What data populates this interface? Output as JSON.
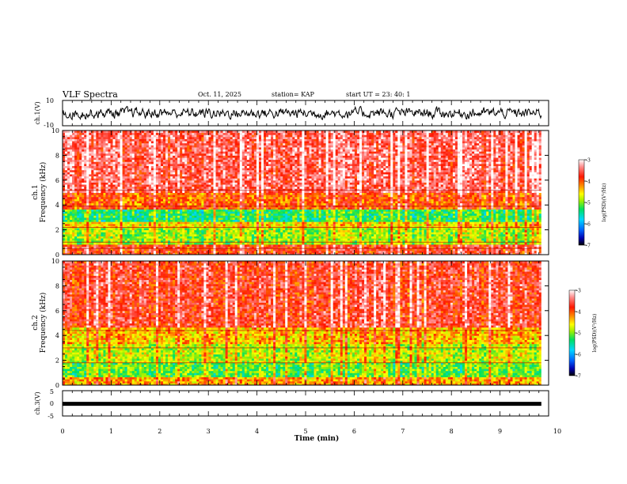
{
  "header": {
    "title": "VLF Spectra",
    "date": "Oct. 11, 2025",
    "station": "station= KAP",
    "start": "start  UT  =   23: 40: 1"
  },
  "colors": {
    "cbar": [
      "#000000",
      "#0000b0",
      "#0066ff",
      "#00d8ff",
      "#00e060",
      "#a0f000",
      "#ffff00",
      "#ff8800",
      "#ff1800",
      "#ff9090",
      "#ffffff"
    ],
    "trace": "#000000"
  },
  "chart_data": [
    {
      "type": "line",
      "ylabel": "ch.1(V)",
      "ylim": [
        -10,
        10
      ],
      "ytick_labels": [
        "10",
        "-10"
      ],
      "description_series": "broadband noise waveform, amplitude roughly -5 to +5 V",
      "xlim": [
        0,
        10
      ]
    },
    {
      "type": "heatmap",
      "panel_label": "ch.1",
      "ylabel": "Frequency (kHz)",
      "ylim": [
        0,
        10
      ],
      "yticks": [
        "0",
        "2",
        "4",
        "6",
        "8",
        "10"
      ],
      "xlim": [
        0,
        10
      ],
      "colorbar": {
        "label": "log(PSD)(V²/Hz)",
        "range": [
          -7,
          -3
        ],
        "tick_labels": [
          "-3",
          "-4",
          "-5",
          "-6",
          "-7"
        ]
      },
      "bands": [
        {
          "f_lo": 0.0,
          "f_hi": 0.9,
          "level": -3.8
        },
        {
          "f_lo": 0.9,
          "f_hi": 2.2,
          "level": -4.9
        },
        {
          "f_lo": 2.2,
          "f_hi": 2.7,
          "level": -4.5
        },
        {
          "f_lo": 2.7,
          "f_hi": 3.6,
          "level": -5.3
        },
        {
          "f_lo": 3.6,
          "f_hi": 5.0,
          "level": -4.0
        },
        {
          "f_lo": 5.0,
          "f_hi": 10.0,
          "level": -3.5
        }
      ],
      "lines_khz": [
        0.5,
        1.0,
        2.2,
        3.9,
        5.2
      ]
    },
    {
      "type": "heatmap",
      "panel_label": "ch.2",
      "ylabel": "Frequency (kHz)",
      "ylim": [
        0,
        10
      ],
      "yticks": [
        "0",
        "2",
        "4",
        "6",
        "8",
        "10"
      ],
      "xlim": [
        0,
        10
      ],
      "colorbar": {
        "label": "log(PSD)(V²/Hz)",
        "range": [
          -7,
          -3
        ],
        "tick_labels": [
          "-3",
          "-4",
          "-5",
          "-6",
          "-7"
        ]
      },
      "bands": [
        {
          "f_lo": 0.0,
          "f_hi": 0.6,
          "level": -4.3
        },
        {
          "f_lo": 0.6,
          "f_hi": 1.9,
          "level": -5.1
        },
        {
          "f_lo": 1.9,
          "f_hi": 3.3,
          "level": -4.8
        },
        {
          "f_lo": 3.3,
          "f_hi": 4.6,
          "level": -4.4
        },
        {
          "f_lo": 4.6,
          "f_hi": 10.0,
          "level": -3.7
        }
      ],
      "lines_khz": [
        1.8,
        3.0,
        4.4
      ]
    },
    {
      "type": "line",
      "ylabel": "ch.3(V)",
      "ylim": [
        -5,
        5
      ],
      "ytick_labels": [
        "5",
        "0",
        "-5"
      ],
      "description_series": "thick flat trace near -0.2 V",
      "level": -0.2,
      "xlim": [
        0,
        10
      ]
    }
  ],
  "xaxis": {
    "label": "Time (min)",
    "tick_labels": [
      "0",
      "1",
      "2",
      "3",
      "4",
      "5",
      "6",
      "7",
      "8",
      "9",
      "10"
    ],
    "range": [
      0,
      10
    ]
  }
}
